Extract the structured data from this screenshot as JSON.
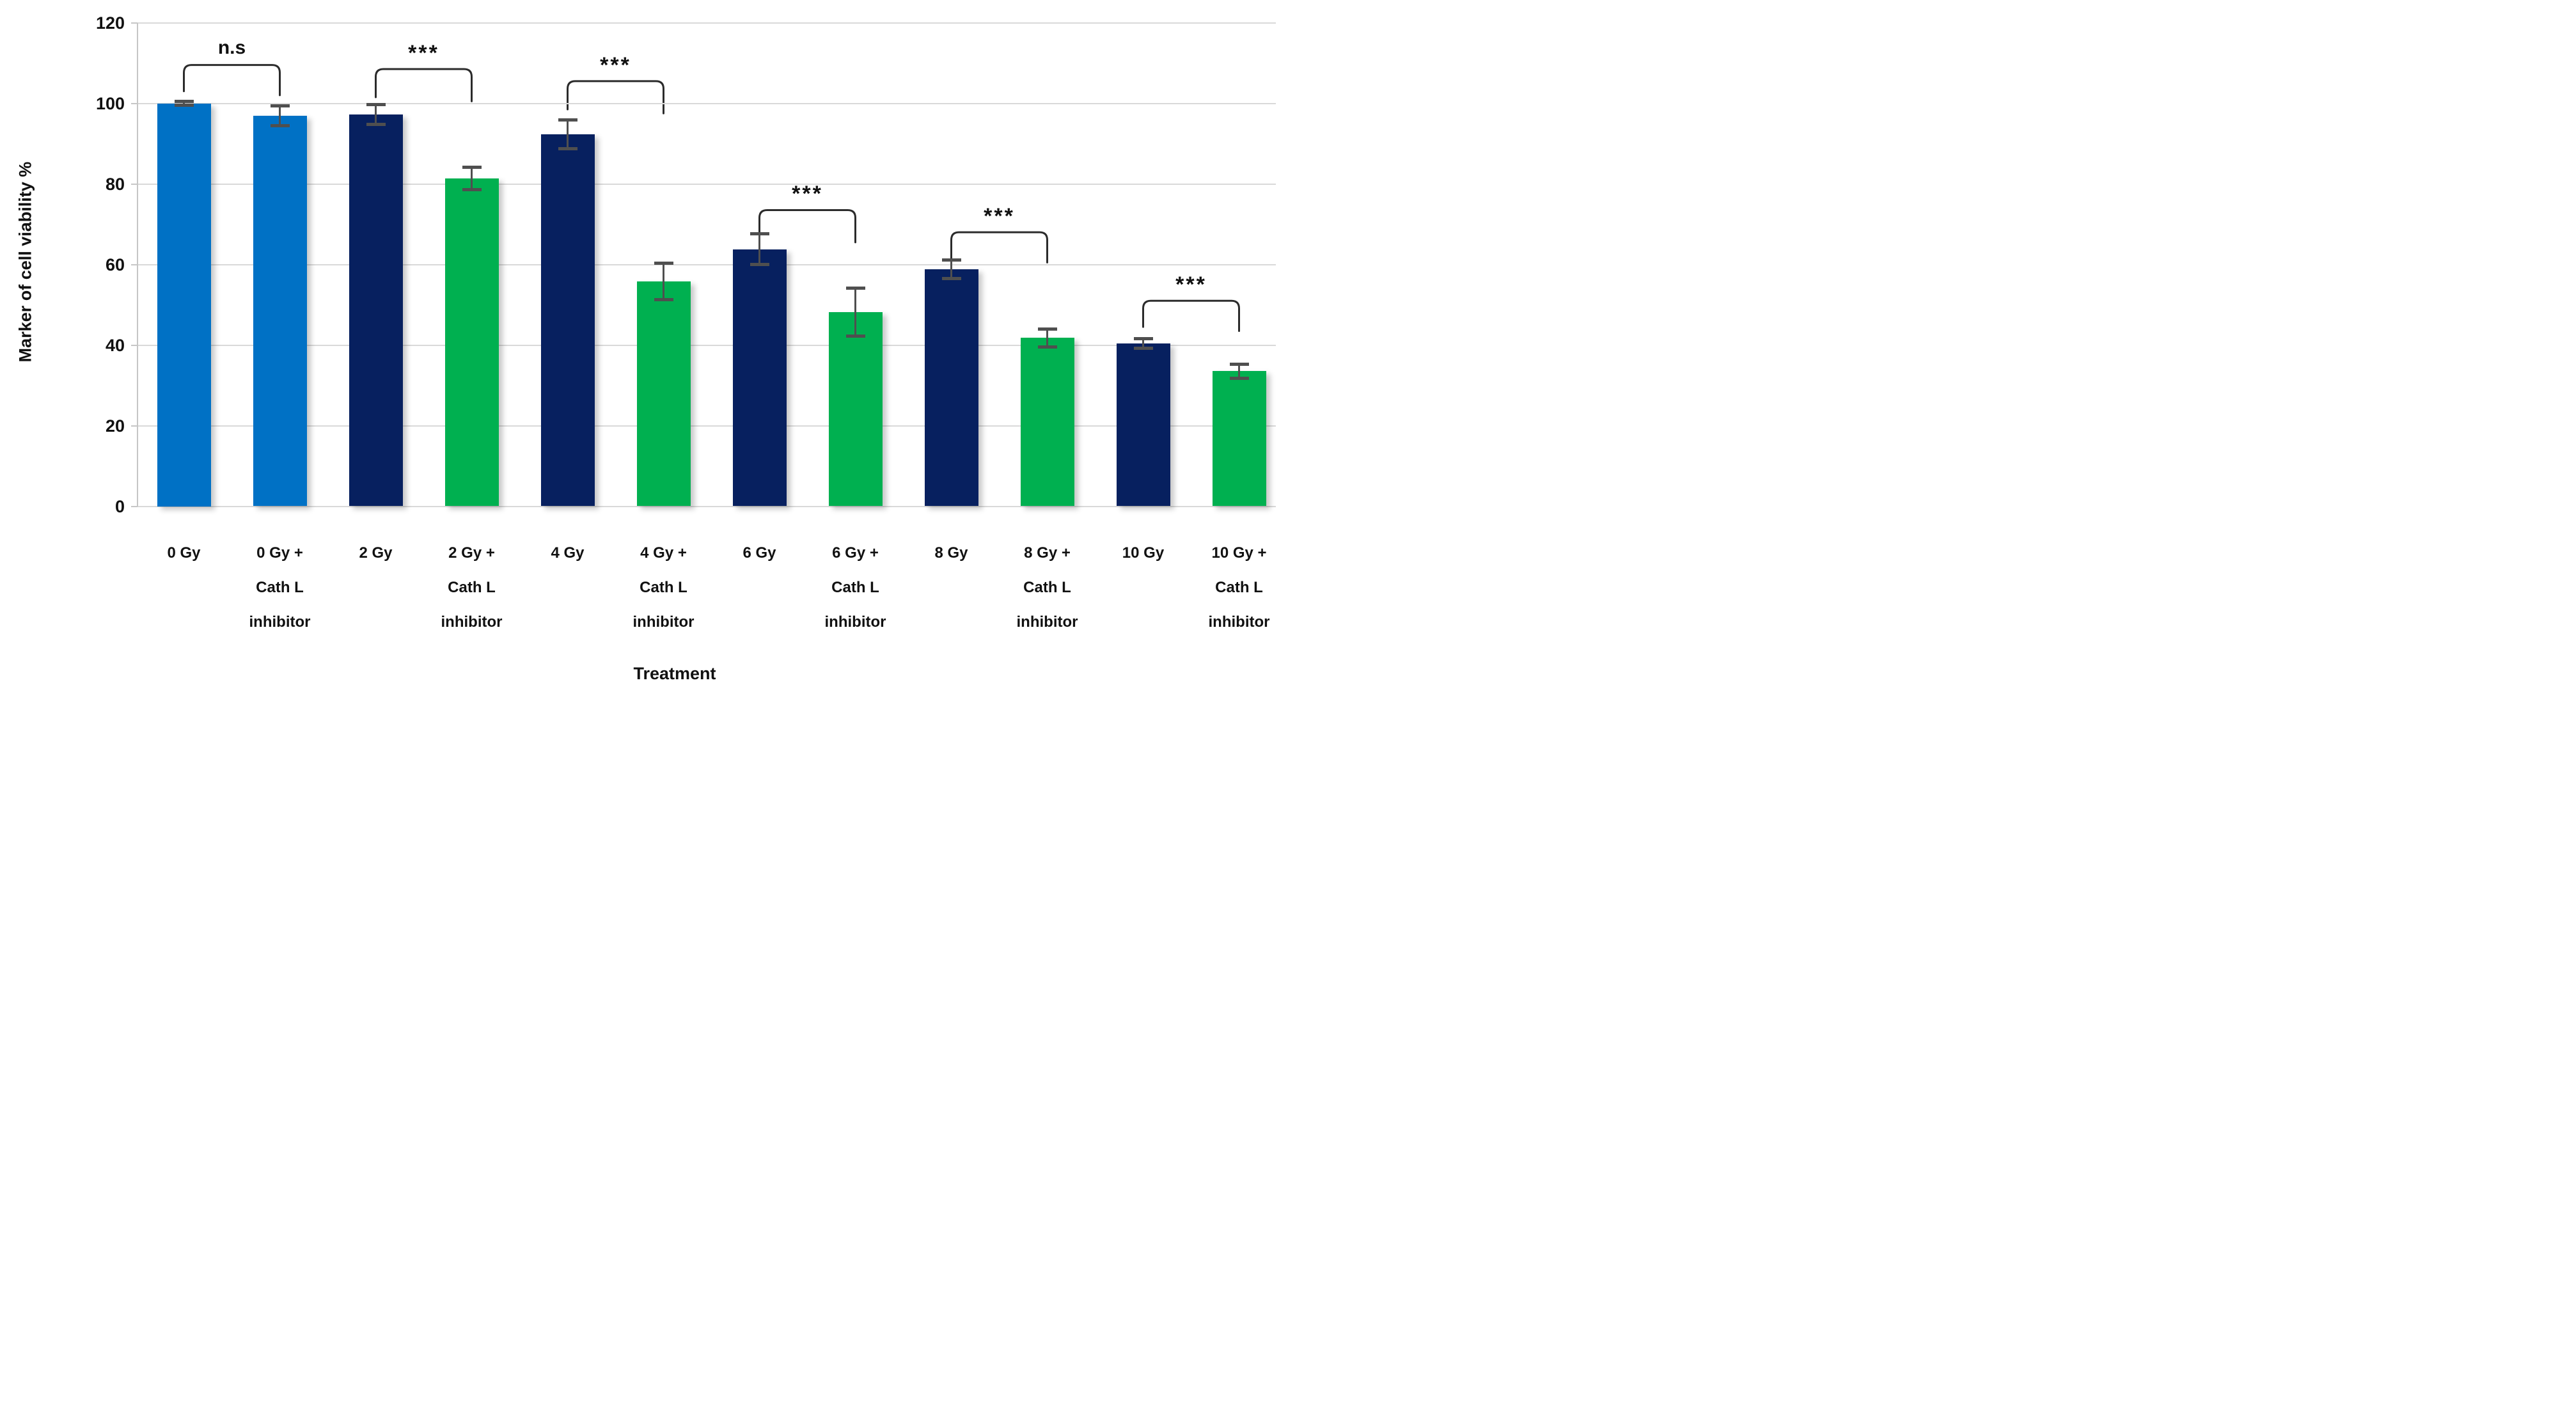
{
  "chart_data": {
    "type": "bar",
    "title": "",
    "xlabel": "Treatment",
    "ylabel": "Marker of cell viability %",
    "ylim": [
      0,
      120
    ],
    "yticks": [
      0,
      20,
      40,
      60,
      80,
      100,
      120
    ],
    "grid": true,
    "legend": "none",
    "categories": [
      "0 Gy",
      "0 Gy + Cath L inhibitor",
      "2 Gy",
      "2 Gy + Cath L inhibitor",
      "4 Gy",
      "4 Gy + Cath L inhibitor",
      "6 Gy",
      "6 Gy + Cath L inhibitor",
      "8 Gy",
      "8 Gy + Cath L inhibitor",
      "10 Gy",
      "10 Gy + Cath L inhibitor"
    ],
    "category_label_lines": [
      [
        "0 Gy"
      ],
      [
        "0 Gy +",
        "Cath L",
        "inhibitor"
      ],
      [
        "2 Gy"
      ],
      [
        "2 Gy +",
        "Cath L",
        "inhibitor"
      ],
      [
        "4 Gy"
      ],
      [
        "4 Gy +",
        "Cath L",
        "inhibitor"
      ],
      [
        "6 Gy"
      ],
      [
        "6 Gy +",
        "Cath L",
        "inhibitor"
      ],
      [
        "8 Gy"
      ],
      [
        "8 Gy +",
        "Cath L",
        "inhibitor"
      ],
      [
        "10 Gy"
      ],
      [
        "10 Gy +",
        "Cath L",
        "inhibitor"
      ]
    ],
    "values": [
      100,
      96.9,
      97.2,
      81.3,
      92.3,
      55.8,
      63.8,
      48.2,
      58.8,
      41.8,
      40.4,
      33.5
    ],
    "errors": [
      0.5,
      2.5,
      2.5,
      2.8,
      3.5,
      4.5,
      3.8,
      6.0,
      2.3,
      2.2,
      1.2,
      1.8
    ],
    "bar_colors": [
      "#0071C5",
      "#0071C5",
      "#07205F",
      "#00B050",
      "#07205F",
      "#00B050",
      "#07205F",
      "#00B050",
      "#07205F",
      "#00B050",
      "#07205F",
      "#00B050"
    ],
    "colors": {
      "light_blue": "#0071C5",
      "navy": "#07205F",
      "green": "#00B050",
      "error_bar": "#4F4F4F",
      "bracket": "#2B2B2B",
      "gridline": "#D9D9D9",
      "axis": "#C6C6C6",
      "text": "#111111",
      "background": "#FFFFFF"
    },
    "significance": [
      {
        "pair": [
          0,
          1
        ],
        "label": "n.s",
        "top": 109.5,
        "foot_left": 103.0,
        "foot_right": 102.0
      },
      {
        "pair": [
          2,
          3
        ],
        "label": "***",
        "top": 108.5,
        "foot_left": 101.5,
        "foot_right": 100.5
      },
      {
        "pair": [
          4,
          5
        ],
        "label": "***",
        "top": 105.5,
        "foot_left": 98.5,
        "foot_right": 97.5
      },
      {
        "pair": [
          6,
          7
        ],
        "label": "***",
        "top": 73.5,
        "foot_left": 66.5,
        "foot_right": 65.5
      },
      {
        "pair": [
          8,
          9
        ],
        "label": "***",
        "top": 68.0,
        "foot_left": 61.5,
        "foot_right": 60.5
      },
      {
        "pair": [
          10,
          11
        ],
        "label": "***",
        "top": 51.0,
        "foot_left": 44.5,
        "foot_right": 43.5
      }
    ]
  }
}
